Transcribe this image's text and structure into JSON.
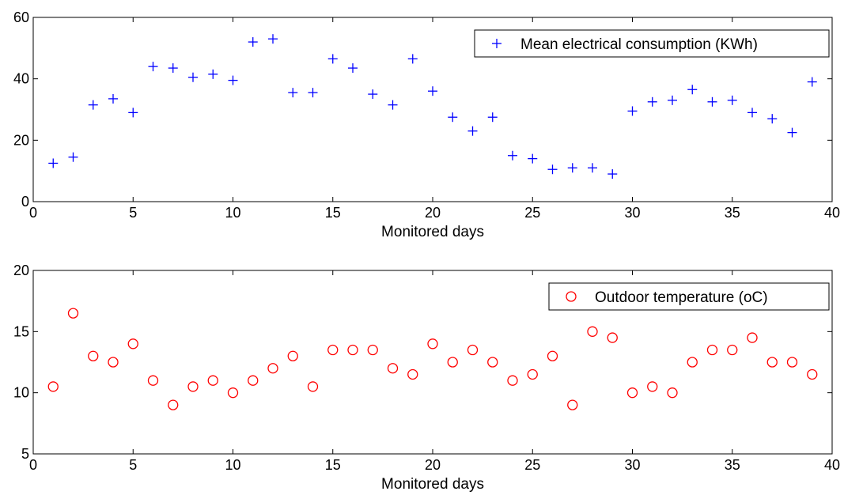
{
  "chart_data": [
    {
      "type": "scatter",
      "xlabel": "Monitored days",
      "ylabel": "",
      "xlim": [
        0,
        40
      ],
      "ylim": [
        0,
        60
      ],
      "xticks": [
        0,
        5,
        10,
        15,
        20,
        25,
        30,
        35,
        40
      ],
      "yticks": [
        0,
        20,
        40,
        60
      ],
      "grid": false,
      "legend_position": "top-right",
      "series": [
        {
          "name": "Mean electrical consumption (KWh)",
          "marker": "plus",
          "color": "#0000ff",
          "x": [
            1,
            2,
            3,
            4,
            5,
            6,
            7,
            8,
            9,
            10,
            11,
            12,
            13,
            14,
            15,
            16,
            17,
            18,
            19,
            20,
            21,
            22,
            23,
            24,
            25,
            26,
            27,
            28,
            29,
            30,
            31,
            32,
            33,
            34,
            35,
            36,
            37,
            38,
            39
          ],
          "y": [
            12.5,
            14.5,
            31.5,
            33.5,
            29,
            44,
            43.5,
            40.5,
            41.5,
            39.5,
            52,
            53,
            35.5,
            35.5,
            46.5,
            43.5,
            35,
            31.5,
            46.5,
            36,
            27.5,
            23,
            27.5,
            15,
            14,
            10.5,
            11,
            11,
            9,
            29.5,
            32.5,
            33,
            36.5,
            32.5,
            33,
            29,
            27,
            22.5,
            39
          ]
        }
      ]
    },
    {
      "type": "scatter",
      "xlabel": "Monitored days",
      "ylabel": "",
      "xlim": [
        0,
        40
      ],
      "ylim": [
        5,
        20
      ],
      "xticks": [
        0,
        5,
        10,
        15,
        20,
        25,
        30,
        35,
        40
      ],
      "yticks": [
        5,
        10,
        15,
        20
      ],
      "grid": false,
      "legend_position": "top-right",
      "series": [
        {
          "name": "Outdoor temperature (oC)",
          "marker": "circle",
          "color": "#ff0000",
          "x": [
            1,
            2,
            3,
            4,
            5,
            6,
            7,
            8,
            9,
            10,
            11,
            12,
            13,
            14,
            15,
            16,
            17,
            18,
            19,
            20,
            21,
            22,
            23,
            24,
            25,
            26,
            27,
            28,
            29,
            30,
            31,
            32,
            33,
            34,
            35,
            36,
            37,
            38,
            39
          ],
          "y": [
            10.5,
            16.5,
            13,
            12.5,
            14,
            11,
            9,
            10.5,
            11,
            10,
            11,
            12,
            13,
            10.5,
            13.5,
            13.5,
            13.5,
            12,
            11.5,
            14,
            12.5,
            13.5,
            12.5,
            11,
            11.5,
            13,
            9,
            15,
            14.5,
            10,
            10.5,
            10,
            12.5,
            13.5,
            13.5,
            14.5,
            12.5,
            12.5,
            11.5
          ]
        }
      ]
    }
  ]
}
